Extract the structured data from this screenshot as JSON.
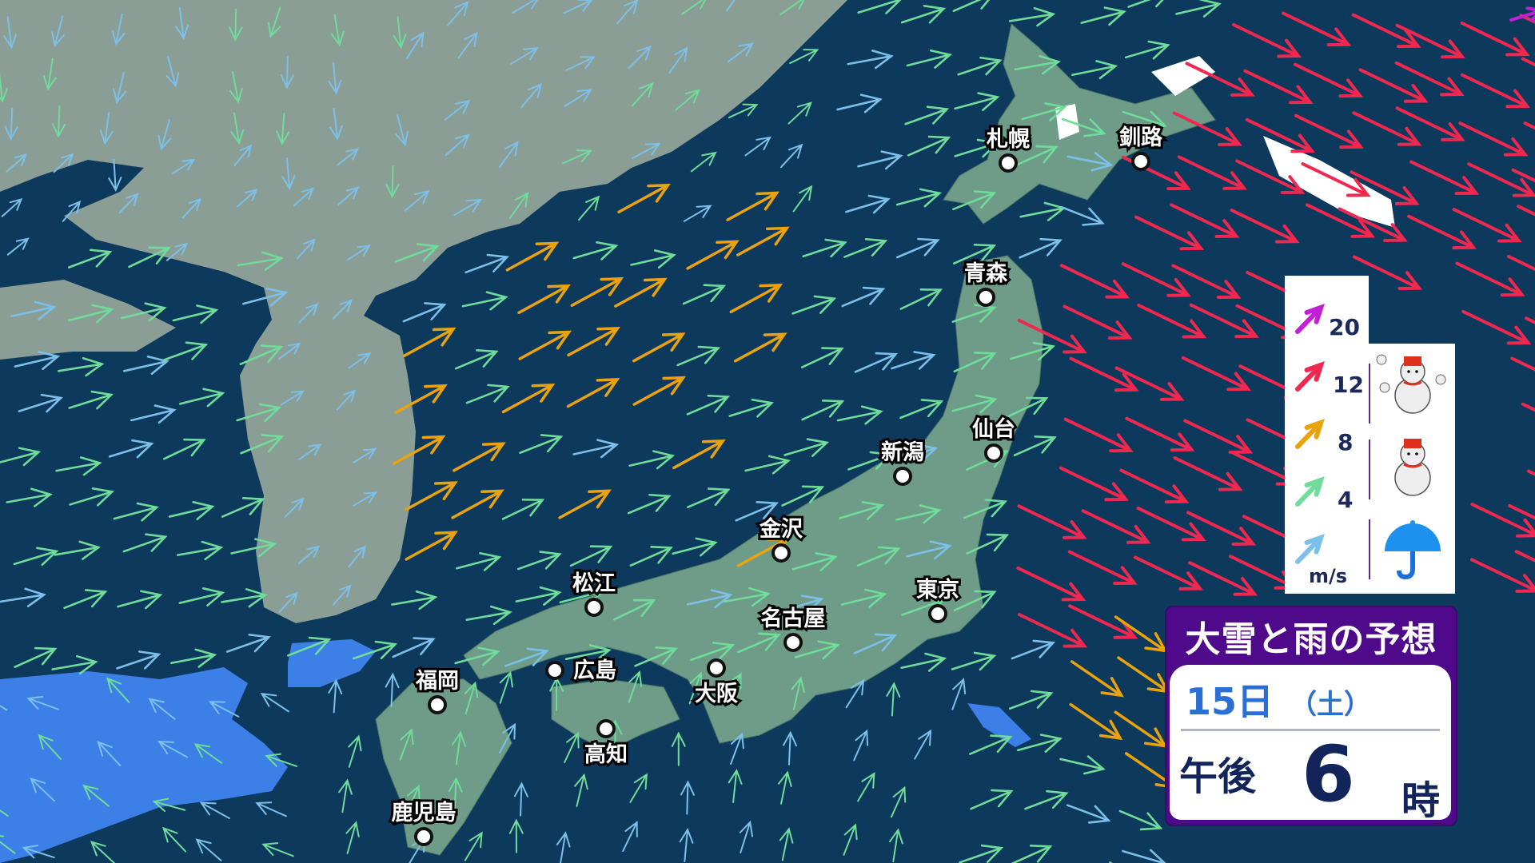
{
  "title": "大雪と雨の予想",
  "forecast_time": {
    "date": "15日",
    "day_of_week": "（土）",
    "ampm": "午後",
    "hour": "6",
    "hour_unit": "時"
  },
  "legend": {
    "wind_unit": "m/s",
    "wind_levels": [
      {
        "value": "20",
        "color": "#c21fd6"
      },
      {
        "value": "12",
        "color": "#f0284f"
      },
      {
        "value": "8",
        "color": "#eaa20e"
      },
      {
        "value": "4",
        "color": "#6fdc9a"
      },
      {
        "value": "",
        "color": "#7cc0ea"
      }
    ],
    "precip_icons": [
      "heavy-snow-icon",
      "snow-icon",
      "rain-umbrella-icon"
    ]
  },
  "cities": [
    "札幌",
    "釧路",
    "青森",
    "仙台",
    "新潟",
    "金沢",
    "東京",
    "名古屋",
    "松江",
    "広島",
    "大阪",
    "福岡",
    "高知",
    "鹿児島"
  ],
  "colors": {
    "ocean": "#0d3a5c",
    "continent": "#8a9e95",
    "japan": "#6e9c89",
    "rain": "#3c7fe6",
    "snow": "#ffffff"
  }
}
